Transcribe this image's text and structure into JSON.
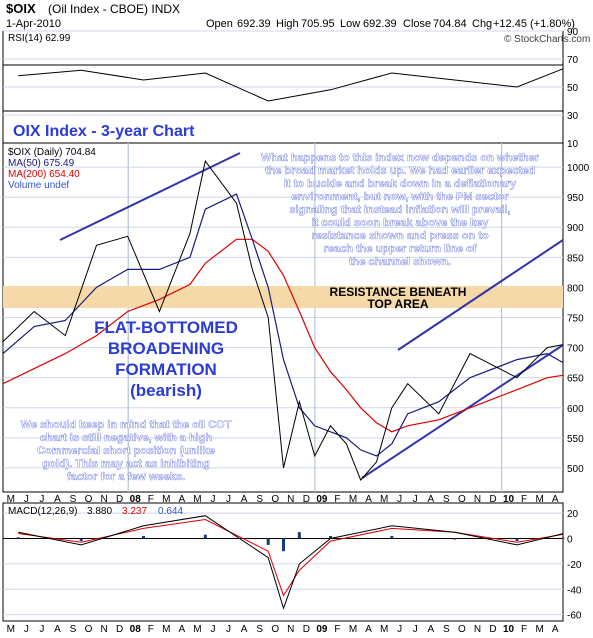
{
  "header": {
    "symbol": "$OIX",
    "name": "(Oil Index - CBOE) INDX",
    "date": "1-Apr-2010",
    "open_label": "Open",
    "open": "692.39",
    "high_label": "High",
    "high": "705.95",
    "low_label": "Low",
    "low": "692.39",
    "close_label": "Close",
    "close": "704.84",
    "chg_label": "Chg",
    "chg": "+12.45 (+1.80%)",
    "watermark": "© StockCharts.com"
  },
  "rsi_panel": {
    "label": "RSI(14) 62.99",
    "ticks": [
      "90",
      "70",
      "50",
      "30",
      "10"
    ],
    "tick_values": [
      90,
      70,
      50,
      30,
      10
    ]
  },
  "price_panel": {
    "chart_title": "OIX Index - 3-year Chart",
    "legend": [
      {
        "text": "$OIX (Daily) 704.84",
        "color": "#000000"
      },
      {
        "text": "MA(50) 675.49",
        "color": "#1a1a80"
      },
      {
        "text": "MA(200) 654.40",
        "color": "#dd0000"
      },
      {
        "text": "Volume undef",
        "color": "#3355cc"
      }
    ],
    "ticks": [
      "1000",
      "950",
      "900",
      "850",
      "800",
      "750",
      "700",
      "650",
      "600",
      "550",
      "500"
    ],
    "tick_values": [
      1000,
      950,
      900,
      850,
      800,
      750,
      700,
      650,
      600,
      550,
      500
    ],
    "commentary_top": [
      "What happens to this index now depends on whether",
      "the broad market holds up. We had earlier expected",
      "it to buckle and break down in a deflationary",
      "environment, but now, with the PM sector",
      "signaling that instead inflation will prevail,",
      "it could soon break above the key",
      "resistance shown and press on to",
      "reach the upper return line of",
      "the channel shown."
    ],
    "resistance_label": [
      "RESISTANCE BENEATH",
      "TOP AREA"
    ],
    "formation_label": [
      "FLAT-BOTTOMED",
      "BROADENING",
      "FORMATION",
      "(bearish)"
    ],
    "commentary_bottom": [
      "We should keep in mind that the oil COT",
      "chart is still negative, with a high",
      "Commercial short position (unlike",
      "gold). This may act as inhibiting",
      "factor for a few weeks."
    ]
  },
  "macd_panel": {
    "label": "MACD(12,26,9)",
    "v1": "3.880",
    "v2": "3.237",
    "v3": "0.644",
    "ticks": [
      "20",
      "0",
      "-20",
      "-40",
      "-60"
    ],
    "tick_values": [
      20,
      0,
      -20,
      -40,
      -60
    ]
  },
  "time_axis": {
    "labels": [
      "M",
      "J",
      "J",
      "A",
      "S",
      "O",
      "N",
      "D",
      "08",
      "F",
      "M",
      "A",
      "M",
      "J",
      "J",
      "A",
      "S",
      "O",
      "N",
      "D",
      "09",
      "F",
      "M",
      "A",
      "M",
      "J",
      "J",
      "A",
      "S",
      "O",
      "N",
      "D",
      "10",
      "F",
      "M",
      "A"
    ]
  },
  "colors": {
    "panel_bg": "#ffffff",
    "frame": "#000000",
    "grid": "#cfd8e8",
    "price": "#000000",
    "ma50": "#1a1a80",
    "ma200": "#dd0000",
    "resistance_band": "#f5d9a8",
    "trendline": "#3333aa",
    "annotation_blue": "#2a3bd6",
    "annotation_white": "#ffffff",
    "macd_hist": "#1a3a7a",
    "macd_signal": "#dd0000"
  },
  "chart_data": [
    {
      "type": "line",
      "title": "RSI(14) 62.99",
      "ylim": [
        10,
        90
      ],
      "x": [
        "2007-05",
        "2007-09",
        "2008-01",
        "2008-05",
        "2008-09",
        "2009-01",
        "2009-05",
        "2009-09",
        "2010-01",
        "2010-04"
      ],
      "series": [
        {
          "values": [
            58,
            62,
            55,
            60,
            40,
            48,
            60,
            55,
            50,
            63
          ]
        }
      ]
    },
    {
      "type": "line",
      "title": "OIX Index - 3-year Chart",
      "ylim": [
        460,
        1040
      ],
      "x": [
        "2007-04",
        "2007-06",
        "2007-08",
        "2007-10",
        "2007-12",
        "2008-02",
        "2008-04",
        "2008-05",
        "2008-07",
        "2008-08",
        "2008-09",
        "2008-10",
        "2008-11",
        "2008-12",
        "2009-01",
        "2009-02",
        "2009-03",
        "2009-04",
        "2009-05",
        "2009-06",
        "2009-08",
        "2009-10",
        "2010-01",
        "2010-03",
        "2010-04"
      ],
      "series": [
        {
          "name": "$OIX (Daily) 704.84",
          "values": [
            710,
            760,
            720,
            870,
            885,
            760,
            890,
            1010,
            940,
            830,
            750,
            500,
            610,
            520,
            570,
            540,
            480,
            510,
            600,
            640,
            590,
            690,
            650,
            700,
            705
          ]
        },
        {
          "name": "MA(50) 675.49",
          "values": [
            690,
            735,
            745,
            800,
            830,
            830,
            850,
            930,
            955,
            880,
            800,
            680,
            600,
            570,
            560,
            550,
            530,
            520,
            540,
            590,
            610,
            650,
            680,
            690,
            675
          ]
        },
        {
          "name": "MA(200) 654.40",
          "values": [
            640,
            665,
            690,
            720,
            760,
            780,
            805,
            840,
            880,
            880,
            860,
            820,
            760,
            700,
            660,
            630,
            600,
            575,
            560,
            570,
            580,
            600,
            630,
            650,
            654
          ]
        }
      ]
    },
    {
      "type": "line",
      "title": "MACD(12,26,9)",
      "ylim": [
        -65,
        28
      ],
      "x": [
        "2007-05",
        "2007-09",
        "2008-01",
        "2008-05",
        "2008-09",
        "2008-10",
        "2008-11",
        "2009-01",
        "2009-05",
        "2009-09",
        "2010-01",
        "2010-04"
      ],
      "series": [
        {
          "name": "MACD",
          "values": [
            5,
            -5,
            10,
            18,
            -15,
            -55,
            -20,
            0,
            10,
            5,
            -5,
            3.88
          ]
        },
        {
          "name": "Signal",
          "values": [
            4,
            -3,
            8,
            15,
            -10,
            -45,
            -25,
            -2,
            8,
            5,
            -3,
            3.237
          ]
        }
      ]
    }
  ]
}
